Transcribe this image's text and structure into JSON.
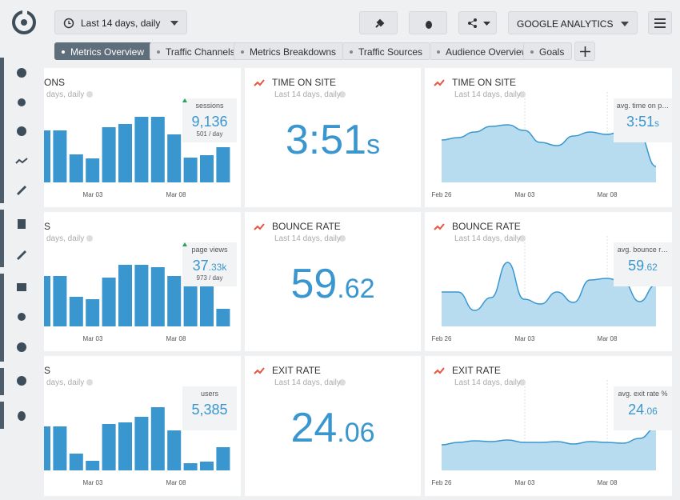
{
  "toolbar": {
    "date_range": "Last 14 days, daily",
    "data_source": "GOOGLE ANALYTICS"
  },
  "tabs": [
    "Metrics Overview",
    "Traffic Channels",
    "Metrics Breakdowns",
    "Traffic Sources",
    "Audience Overview",
    "Goals"
  ],
  "active_tab": 0,
  "widgets": [
    {
      "kind": "bars",
      "title": "ONS",
      "subtitle": "days, daily",
      "stat_label": "sessions",
      "value_main": "9,136",
      "stat_change": "501 / day",
      "dates": [
        "Mar 03",
        "Mar 08"
      ],
      "bars": [
        65,
        65,
        35,
        30,
        69,
        73,
        82,
        82,
        60,
        31,
        34,
        44
      ]
    },
    {
      "kind": "number",
      "title": "TIME ON SITE",
      "subtitle": "Last 14 days, daily",
      "value_main": "3:51",
      "value_minor": "s"
    },
    {
      "kind": "area",
      "title": "TIME ON SITE",
      "subtitle": "Last 14 days, daily",
      "stat_label": "avg. time on p…",
      "value_main": "3:51",
      "value_minor": "s",
      "dates": [
        "Feb 26",
        "Mar 03",
        "Mar 08"
      ],
      "area": [
        53,
        56,
        63,
        70,
        72,
        65,
        50,
        46,
        58,
        63,
        60,
        64,
        58,
        20
      ]
    },
    {
      "kind": "bars",
      "title": "S",
      "subtitle": "days, daily",
      "stat_label": "page views",
      "value_main": "37",
      "value_minor": ".33k",
      "stat_change": "973 / day",
      "dates": [
        "Mar 03",
        "Mar 08"
      ],
      "bars": [
        63,
        63,
        37,
        34,
        61,
        77,
        77,
        74,
        63,
        50,
        53,
        22
      ]
    },
    {
      "kind": "number",
      "title": "BOUNCE RATE",
      "subtitle": "Last 14 days, daily",
      "value_main": "59",
      "value_minor": ".62"
    },
    {
      "kind": "area",
      "title": "BOUNCE RATE",
      "subtitle": "Last 14 days, daily",
      "stat_label": "avg. bounce r…",
      "value_main": "59",
      "value_minor": ".62",
      "dates": [
        "Feb 26",
        "Mar 03",
        "Mar 08"
      ],
      "area": [
        43,
        43,
        20,
        36,
        80,
        34,
        28,
        43,
        30,
        58,
        60,
        56,
        31,
        52
      ]
    },
    {
      "kind": "bars",
      "title": "S",
      "subtitle": "days, daily",
      "stat_label": "users",
      "value_main": "5,385",
      "dates": [
        "Mar 03",
        "Mar 08"
      ],
      "bars": [
        55,
        55,
        21,
        12,
        58,
        60,
        67,
        79,
        50,
        9,
        11,
        29
      ]
    },
    {
      "kind": "number",
      "title": "EXIT RATE",
      "subtitle": "Last 14 days, daily",
      "value_main": "24",
      "value_minor": ".06"
    },
    {
      "kind": "area",
      "title": "EXIT RATE",
      "subtitle": "Last 14 days, daily",
      "stat_label": "avg. exit rate %",
      "value_main": "24",
      "value_minor": ".06",
      "dates": [
        "Feb 26",
        "Mar 03",
        "Mar 08"
      ],
      "area": [
        32,
        35,
        37,
        36,
        38,
        35,
        35,
        36,
        33,
        36,
        35,
        34,
        40,
        53
      ]
    }
  ]
}
